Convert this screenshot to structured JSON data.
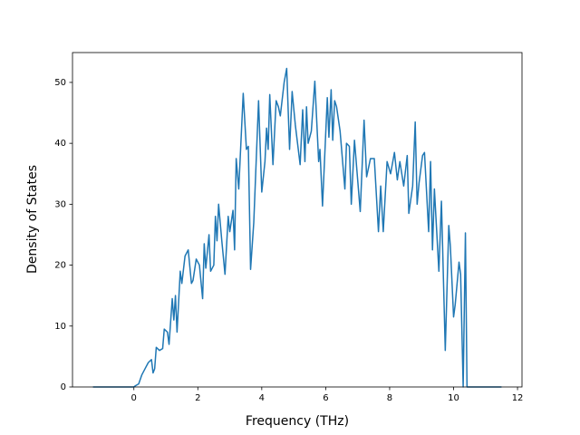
{
  "chart_data": {
    "type": "line",
    "xlabel": "Frequency (THz)",
    "ylabel": "Density of States",
    "x": [
      -1.28,
      0.0,
      0.05,
      0.15,
      0.25,
      0.35,
      0.45,
      0.55,
      0.6,
      0.65,
      0.7,
      0.8,
      0.9,
      0.95,
      1.05,
      1.1,
      1.2,
      1.25,
      1.3,
      1.35,
      1.45,
      1.5,
      1.6,
      1.7,
      1.8,
      1.85,
      1.95,
      2.05,
      2.15,
      2.2,
      2.25,
      2.35,
      2.4,
      2.5,
      2.55,
      2.6,
      2.65,
      2.75,
      2.85,
      2.95,
      3.0,
      3.1,
      3.15,
      3.2,
      3.28,
      3.42,
      3.52,
      3.58,
      3.65,
      3.75,
      3.9,
      4.0,
      4.1,
      4.15,
      4.2,
      4.25,
      4.35,
      4.45,
      4.52,
      4.58,
      4.7,
      4.78,
      4.87,
      4.95,
      5.05,
      5.2,
      5.28,
      5.35,
      5.4,
      5.45,
      5.55,
      5.66,
      5.78,
      5.82,
      5.9,
      6.05,
      6.1,
      6.17,
      6.22,
      6.28,
      6.34,
      6.45,
      6.6,
      6.65,
      6.74,
      6.8,
      6.9,
      7.08,
      7.2,
      7.28,
      7.4,
      7.52,
      7.65,
      7.72,
      7.8,
      7.92,
      8.03,
      8.15,
      8.24,
      8.32,
      8.44,
      8.55,
      8.6,
      8.72,
      8.8,
      8.86,
      8.92,
      9.03,
      9.09,
      9.22,
      9.28,
      9.34,
      9.4,
      9.54,
      9.62,
      9.74,
      9.85,
      9.9,
      10.0,
      10.05,
      10.17,
      10.22,
      10.3,
      10.37,
      10.42,
      11.5
    ],
    "series": [
      {
        "color": "#1f77b4",
        "values": [
          0,
          0,
          0.2,
          0.5,
          2,
          3,
          4,
          4.5,
          2.3,
          3,
          6.5,
          6,
          6.3,
          9.5,
          9,
          7,
          14.5,
          11,
          15,
          9,
          19,
          17,
          21.5,
          22.5,
          17,
          17.5,
          21,
          20,
          14.5,
          23.5,
          19.5,
          25,
          19,
          20,
          28,
          24,
          30,
          24,
          18.5,
          28,
          25.5,
          29,
          22.5,
          37.5,
          32.5,
          48.2,
          39,
          39.5,
          19.3,
          27,
          47,
          32,
          37,
          42.5,
          39,
          48,
          36.5,
          47,
          46,
          44.5,
          50,
          52.3,
          39,
          48.5,
          43,
          36.5,
          45.5,
          37,
          46,
          40,
          42,
          50.2,
          37,
          39,
          29.7,
          47.5,
          41,
          48.8,
          40.5,
          47,
          46,
          42,
          32.5,
          40,
          39.5,
          30,
          40.5,
          28.8,
          43.8,
          34.5,
          37.5,
          37.5,
          25.5,
          33,
          25.5,
          37,
          35,
          38.5,
          34,
          37,
          33,
          38,
          28.5,
          33,
          43.5,
          30,
          33.5,
          38,
          38.5,
          25.5,
          37,
          22.5,
          32.5,
          19,
          30.5,
          6,
          26.5,
          23,
          11.5,
          13.5,
          20.5,
          18.5,
          0,
          25.3,
          0,
          0
        ]
      }
    ],
    "xlim": [
      -1.92,
      12.14
    ],
    "ylim": [
      0,
      54.9
    ],
    "xticks": [
      0,
      2,
      4,
      6,
      8,
      10,
      12
    ],
    "yticks": [
      0,
      10,
      20,
      30,
      40,
      50
    ]
  }
}
